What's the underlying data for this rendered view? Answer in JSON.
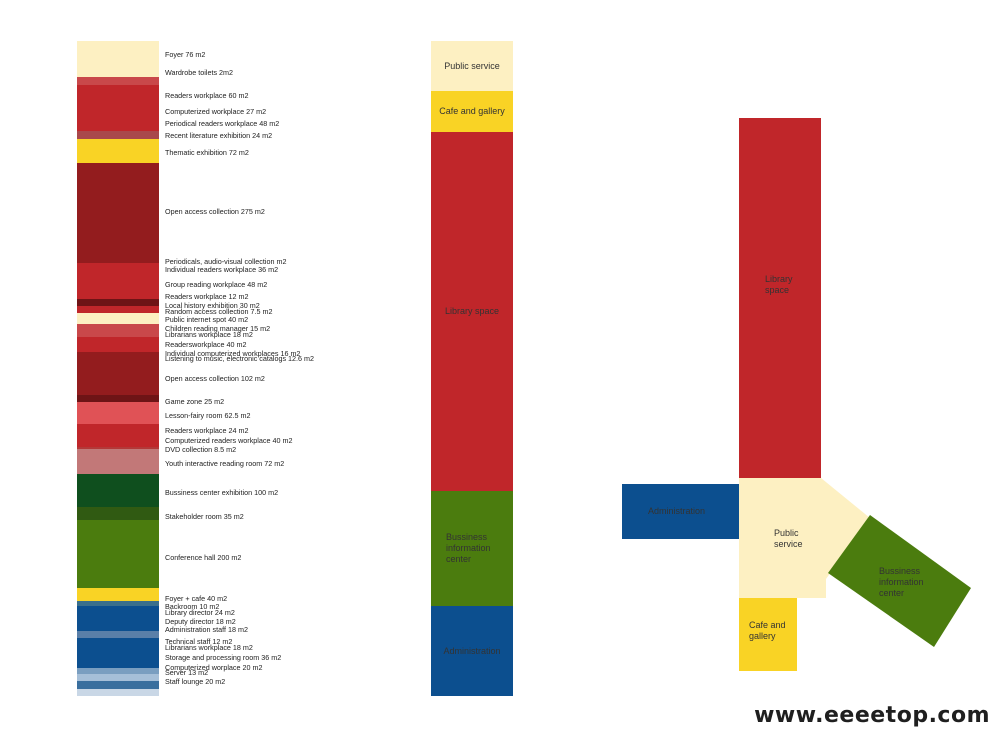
{
  "stack": [
    {
      "label": "Foyer 76 m2",
      "color": "#fdf0c2"
    },
    {
      "label": "Wardrobe toilets 2m2",
      "color": "#fdf0c2"
    },
    {
      "label": "",
      "color": "#c9484a"
    },
    {
      "label": "Readers workplace 60 m2",
      "color": "#c0262a"
    },
    {
      "label": "Computerized workplace 27 m2",
      "color": "#c0262a"
    },
    {
      "label": "Periodical readers workplace 48 m2",
      "color": "#c0262a"
    },
    {
      "label": "Recent literature exhibition 24 m2",
      "color": "#a9484b"
    },
    {
      "label": "Thematic exhibition 72 m2",
      "color": "#f9d325"
    },
    {
      "label": "Open access collection 275 m2",
      "color": "#931c1e"
    },
    {
      "label": "Periodicals, audio-visual collection m2",
      "color": "#c0262a"
    },
    {
      "label": "Individual readers workplace 36 m2",
      "color": "#c0262a"
    },
    {
      "label": "Group reading workplace 48 m2",
      "color": "#c0262a"
    },
    {
      "label": "Readers workplace 12 m2",
      "color": "#6e1416"
    },
    {
      "label": "Local history exhibition 30 m2",
      "color": "#6e1416"
    },
    {
      "label": "Random access collection 7.5 m2",
      "color": "#c0262a"
    },
    {
      "label": "Public internet spot 40 m2",
      "color": "#fdf0c2"
    },
    {
      "label": "Children reading manager 15 m2",
      "color": "#c9484a"
    },
    {
      "label": "Librarians workplace 18 m2",
      "color": "#c9484a"
    },
    {
      "label": "Readersworkplace 40 m2",
      "color": "#c0262a"
    },
    {
      "label": "Individual computerized workplaces 16 m2",
      "color": "#c0262a"
    },
    {
      "label": "Listening to music, electronic catalogs 12.6 m2",
      "color": "#931c1e"
    },
    {
      "label": "Open access collection 102 m2",
      "color": "#931c1e"
    },
    {
      "label": "Game zone 25 m2",
      "color": "#6e1416"
    },
    {
      "label": "Lesson-fairy room 62.5 m2",
      "color": "#e05256"
    },
    {
      "label": "Readers workplace 24 m2",
      "color": "#c0262a"
    },
    {
      "label": "Computerized readers workplace 40 m2",
      "color": "#c0262a"
    },
    {
      "label": "DVD collection 8.5 m2",
      "color": "#b33838"
    },
    {
      "label": "Youth interactive reading room 72 m2",
      "color": "#c27878"
    },
    {
      "label": "Bussiness center exhibition 100 m2",
      "color": "#0f4f1e"
    },
    {
      "label": "Stakeholder room 35 m2",
      "color": "#305a12"
    },
    {
      "label": "Conference hall 200 m2",
      "color": "#4b7c0e"
    },
    {
      "label": "Foyer + cafe 40 m2",
      "color": "#f9d325"
    },
    {
      "label": "Backroom 10 m2",
      "color": "#3a6f8c"
    },
    {
      "label": "Library director 24 m2",
      "color": "#0c4f8f"
    },
    {
      "label": "Deputy director 18 m2",
      "color": "#0c4f8f"
    },
    {
      "label": "Administration staff 18 m2",
      "color": "#0c4f8f"
    },
    {
      "label": "Technical staff 12 m2",
      "color": "#5a7fa8"
    },
    {
      "label": "Librarians workplace 18 m2",
      "color": "#0c4f8f"
    },
    {
      "label": "Storage and processing room 36 m2",
      "color": "#0c4f8f"
    },
    {
      "label": "Computerized worplace 20 m2",
      "color": "#7a9ec0"
    },
    {
      "label": "Server 13 m2",
      "color": "#a6bfd8"
    },
    {
      "label": "Staff lounge 20 m2",
      "color": "#3a6f9e"
    },
    {
      "label": "",
      "color": "#c9d7e6"
    }
  ],
  "zones": [
    {
      "label": "Public service",
      "color": "#fdf0c2"
    },
    {
      "label": "Cafe and gallery",
      "color": "#f9d325"
    },
    {
      "label": "Library space",
      "color": "#c0262a"
    },
    {
      "label": "Bussiness\ninformation\ncenter",
      "color": "#4b7c0e"
    },
    {
      "label": "Administration",
      "color": "#0c4f8f"
    }
  ],
  "diagram": {
    "library_space": "Library\nspace",
    "administration": "Administration",
    "public_service": "Public\nservice",
    "business": "Bussiness\ninformation\ncenter",
    "cafe": "Cafe and\ngallery"
  },
  "watermark": "www.eeeetop.com"
}
